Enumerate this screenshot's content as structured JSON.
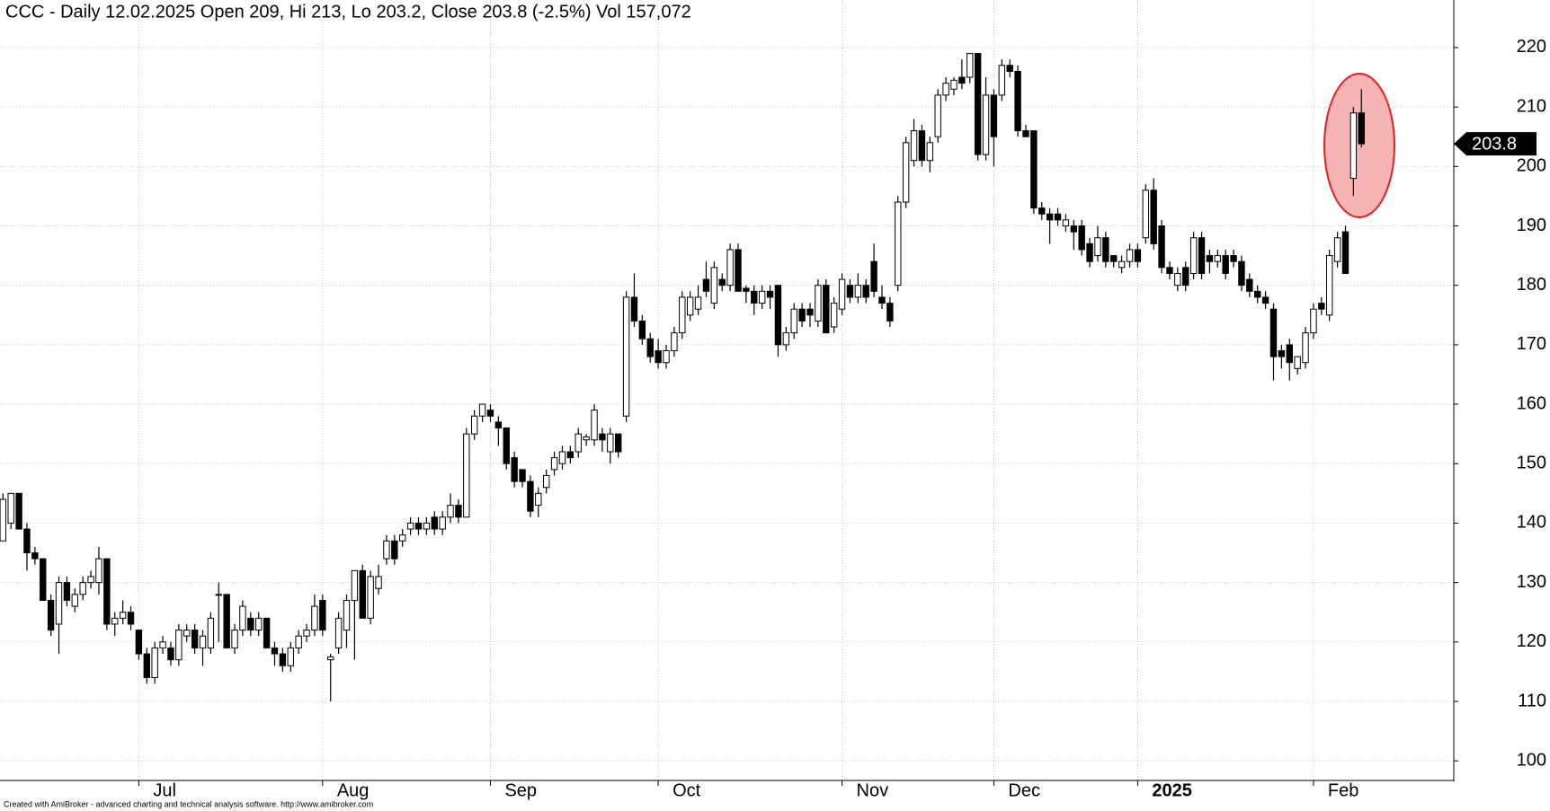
{
  "chart_data": {
    "type": "candlestick",
    "title": "CCC - Daily 12.02.2025 Open 209, Hi 213, Lo 203.2, Close 203.8 (-2.5%) Vol 157,072",
    "footer": "Created with AmiBroker - advanced charting and technical analysis software. http://www.amibroker.com",
    "categories": [
      null,
      null,
      null,
      null,
      null,
      null,
      null,
      null,
      null,
      null,
      null,
      null,
      null,
      null,
      null,
      null,
      null,
      "Jul",
      null,
      null,
      null,
      null,
      null,
      null,
      null,
      null,
      null,
      null,
      null,
      null,
      null,
      null,
      null,
      null,
      null,
      null,
      null,
      null,
      null,
      null,
      "Aug",
      null,
      null,
      null,
      null,
      null,
      null,
      null,
      null,
      null,
      null,
      null,
      null,
      null,
      null,
      null,
      null,
      null,
      null,
      null,
      null,
      "Sep",
      null,
      null,
      null,
      null,
      null,
      null,
      null,
      null,
      null,
      null,
      null,
      null,
      null,
      null,
      null,
      null,
      null,
      null,
      null,
      null,
      "Oct",
      null,
      null,
      null,
      null,
      null,
      null,
      null,
      null,
      null,
      null,
      null,
      null,
      null,
      null,
      null,
      null,
      null,
      null,
      null,
      null,
      null,
      null,
      "Nov",
      null,
      null,
      null,
      null,
      null,
      null,
      null,
      null,
      null,
      null,
      null,
      null,
      null,
      null,
      null,
      null,
      null,
      null,
      "Dec",
      null,
      null,
      null,
      null,
      null,
      null,
      null,
      null,
      null,
      null,
      null,
      null,
      null,
      null,
      null,
      null,
      null,
      "2025",
      null,
      null,
      null,
      null,
      null,
      null,
      null,
      null,
      null,
      null,
      null,
      null,
      null,
      null,
      null,
      null,
      null,
      null,
      null,
      null,
      null,
      "Feb",
      null,
      null,
      null,
      null,
      null,
      null
    ],
    "open": [
      137,
      140,
      145,
      139,
      135,
      134,
      127,
      123,
      130,
      126,
      128,
      130,
      130,
      134,
      123,
      124,
      125,
      122,
      118,
      114,
      119,
      119,
      117,
      121,
      122,
      119,
      119,
      128,
      128,
      119,
      122,
      124,
      122,
      124,
      119,
      118,
      116,
      119,
      121,
      122,
      127,
      117,
      119,
      122,
      127,
      132,
      124,
      129,
      134,
      137,
      137,
      139,
      140,
      139,
      141,
      139,
      141,
      143,
      141,
      155,
      158,
      159,
      157,
      156,
      151,
      149,
      147,
      143,
      146,
      149,
      150,
      152,
      152,
      154,
      154,
      155,
      152,
      155,
      158,
      178,
      174,
      171,
      169,
      167,
      169,
      172,
      175,
      176,
      181,
      177,
      181,
      180,
      186,
      179.5,
      179,
      177,
      179,
      180,
      170,
      172,
      176,
      176,
      174,
      180,
      173,
      176,
      180,
      178,
      180,
      184,
      178,
      177,
      180,
      194,
      201,
      206,
      201,
      205,
      212,
      213,
      215,
      215,
      219,
      202,
      212,
      212,
      217,
      216,
      206,
      206,
      193,
      192,
      192,
      190,
      190,
      190,
      187,
      185,
      188,
      185,
      183,
      184,
      186,
      188,
      196,
      190,
      183,
      180,
      183,
      182,
      188,
      185,
      184,
      185,
      185,
      184,
      181,
      179,
      178,
      176,
      169,
      170,
      166,
      167,
      172,
      177,
      175,
      184,
      189,
      198,
      209
    ],
    "high": [
      145,
      145,
      145,
      140,
      136,
      134,
      128,
      131,
      131,
      129,
      131,
      132,
      136,
      134,
      125,
      127,
      126,
      122,
      119,
      120,
      121,
      120,
      123,
      123,
      123,
      122,
      125,
      130,
      128,
      123,
      127,
      125,
      125,
      124,
      120,
      119,
      120,
      122,
      123,
      128,
      128,
      118,
      125,
      128,
      132,
      133,
      132,
      133,
      138,
      138,
      139,
      141,
      141,
      141,
      142,
      142,
      145,
      144,
      156,
      159,
      160,
      160,
      158,
      156,
      152,
      149,
      148,
      146,
      149,
      152,
      153,
      153,
      156,
      155,
      160,
      156,
      156,
      155,
      179,
      182,
      175,
      172,
      171,
      170,
      173,
      179,
      179,
      180,
      184,
      184,
      182,
      187,
      187,
      180,
      180,
      180,
      180,
      180,
      173,
      177,
      177,
      177,
      181,
      181,
      178,
      182,
      181,
      182,
      181,
      187,
      180,
      178,
      195,
      205,
      208,
      207,
      205,
      213,
      215,
      215,
      218,
      219,
      219,
      215,
      213,
      218,
      218,
      217,
      207,
      206,
      194,
      193,
      193,
      192,
      191,
      191,
      188,
      190,
      189,
      185,
      185,
      187,
      187,
      197,
      198,
      191,
      184,
      183,
      184,
      189,
      189,
      186,
      186,
      186,
      186,
      185,
      182,
      180,
      179,
      177,
      170,
      171,
      168,
      173,
      177,
      178,
      186,
      189,
      190,
      210,
      213
    ],
    "low": [
      137,
      139,
      139,
      132,
      133,
      127,
      121,
      118,
      126,
      125,
      127,
      129,
      128,
      122,
      121,
      123,
      122,
      117,
      113,
      113,
      118,
      116,
      116,
      120,
      118,
      116,
      118,
      120,
      119,
      118,
      121,
      121,
      121,
      119,
      116,
      115,
      115,
      118,
      120,
      121,
      121,
      110,
      118,
      119,
      117,
      124,
      123,
      128,
      133,
      133,
      136,
      138,
      138,
      138,
      138,
      138,
      140,
      140,
      141,
      154,
      157,
      157,
      153,
      149,
      146,
      146,
      141,
      141,
      145,
      148,
      149,
      150,
      151,
      153,
      153,
      152,
      150,
      151,
      157,
      173,
      170,
      167,
      166,
      166,
      168,
      171,
      174,
      175,
      178,
      176,
      179,
      179,
      179,
      177,
      175,
      176,
      176,
      168,
      169,
      171,
      173,
      173,
      173,
      172,
      172,
      175,
      177,
      177,
      177,
      178,
      176,
      173,
      179,
      193,
      200,
      200,
      199,
      204,
      211,
      212,
      213,
      214,
      201,
      201,
      200,
      211,
      215,
      205,
      205,
      192,
      191,
      187,
      190,
      189,
      186,
      185,
      183,
      184,
      183,
      183,
      182,
      183,
      183,
      187,
      186,
      182,
      181,
      179,
      179,
      181,
      181,
      182,
      183,
      181,
      183,
      179,
      178,
      177,
      176,
      164,
      166,
      164,
      165,
      166,
      171,
      175,
      174,
      183,
      182,
      195,
      203.2
    ],
    "close": [
      144,
      145,
      139,
      135,
      134,
      127,
      122,
      130,
      127,
      128,
      130,
      131,
      134,
      123,
      124,
      125,
      123,
      118,
      114,
      119,
      120,
      117,
      122,
      122,
      119,
      121,
      124,
      128,
      119,
      122,
      126,
      122,
      124,
      119,
      118,
      116,
      119,
      121,
      122,
      126,
      122,
      117.5,
      124,
      127,
      132,
      124,
      131,
      131,
      137,
      134,
      138,
      140,
      139,
      140,
      139,
      141,
      143,
      141,
      155,
      158,
      160,
      158,
      156,
      150,
      147,
      147,
      142,
      145,
      148,
      151,
      152,
      151,
      155,
      154.5,
      159,
      154,
      155,
      152,
      178,
      174,
      171,
      168,
      167,
      169,
      172,
      178,
      178,
      178,
      179,
      183,
      180,
      186,
      179,
      179,
      177,
      179,
      178,
      170,
      172,
      176,
      174,
      175,
      180,
      172,
      177,
      181,
      178,
      180,
      178,
      179,
      177,
      174,
      194,
      204,
      206,
      201,
      204,
      212,
      214,
      214.5,
      214,
      219,
      202,
      212,
      205,
      217,
      216,
      206,
      205,
      193,
      192,
      191,
      191,
      191,
      189,
      186,
      184,
      188,
      184,
      184,
      184,
      186,
      184,
      196,
      187,
      183,
      182,
      182,
      180,
      188,
      182,
      184,
      185,
      182,
      184,
      180,
      179,
      178,
      177,
      168,
      168,
      167,
      168,
      172,
      176,
      176,
      185,
      188,
      182,
      209,
      203.8
    ],
    "ylim": [
      96.7,
      228
    ],
    "yticks": [
      100,
      110,
      120,
      130,
      140,
      150,
      160,
      170,
      180,
      190,
      200,
      210,
      220
    ],
    "grid": true,
    "up_color": "#ffffff",
    "down_color": "#000000"
  }
}
